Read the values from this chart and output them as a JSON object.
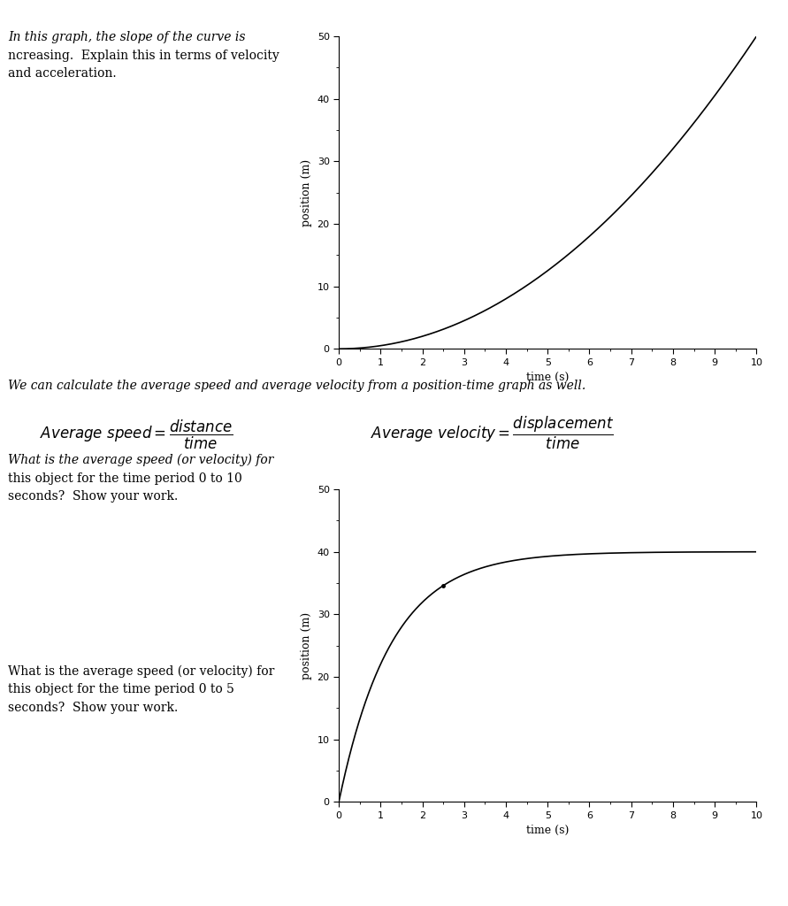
{
  "background_color": "#ffffff",
  "text1_line1": "In this graph, the slope of the curve is",
  "text1_line2": "ncreasing.  Explain this in terms of velocity",
  "text1_line3": "and acceleration.",
  "chart1_xlabel": "time (s)",
  "chart1_ylabel": "position (m)",
  "chart1_xlim": [
    0,
    10
  ],
  "chart1_ylim": [
    0,
    50
  ],
  "chart1_xticks": [
    0,
    1,
    2,
    3,
    4,
    5,
    6,
    7,
    8,
    9,
    10
  ],
  "chart1_yticks": [
    0,
    10,
    20,
    30,
    40,
    50
  ],
  "chart1_curve_coeff": 0.5,
  "sep_text": "We can calculate the average speed and average velocity from a position-time graph as well.",
  "formula_left": "Average speed = distance / time",
  "formula_right": "Average velocity = displacement / time",
  "text3_line1": "What is the average speed (or velocity) for",
  "text3_line2": "this object for the time period 0 to 10",
  "text3_line3": "seconds?  Show your work.",
  "text4_line1": "What is the average speed (or velocity) for",
  "text4_line2": "this object for the time period 0 to 5",
  "text4_line3": "seconds?  Show your work.",
  "chart2_xlabel": "time (s)",
  "chart2_ylabel": "position (m)",
  "chart2_xlim": [
    0,
    10
  ],
  "chart2_ylim": [
    0,
    50
  ],
  "chart2_xticks": [
    0,
    1,
    2,
    3,
    4,
    5,
    6,
    7,
    8,
    9,
    10
  ],
  "chart2_yticks": [
    0,
    10,
    20,
    30,
    40,
    50
  ],
  "chart2_asymptote": 40,
  "chart2_rate": 0.8,
  "dot_t": 2.5
}
